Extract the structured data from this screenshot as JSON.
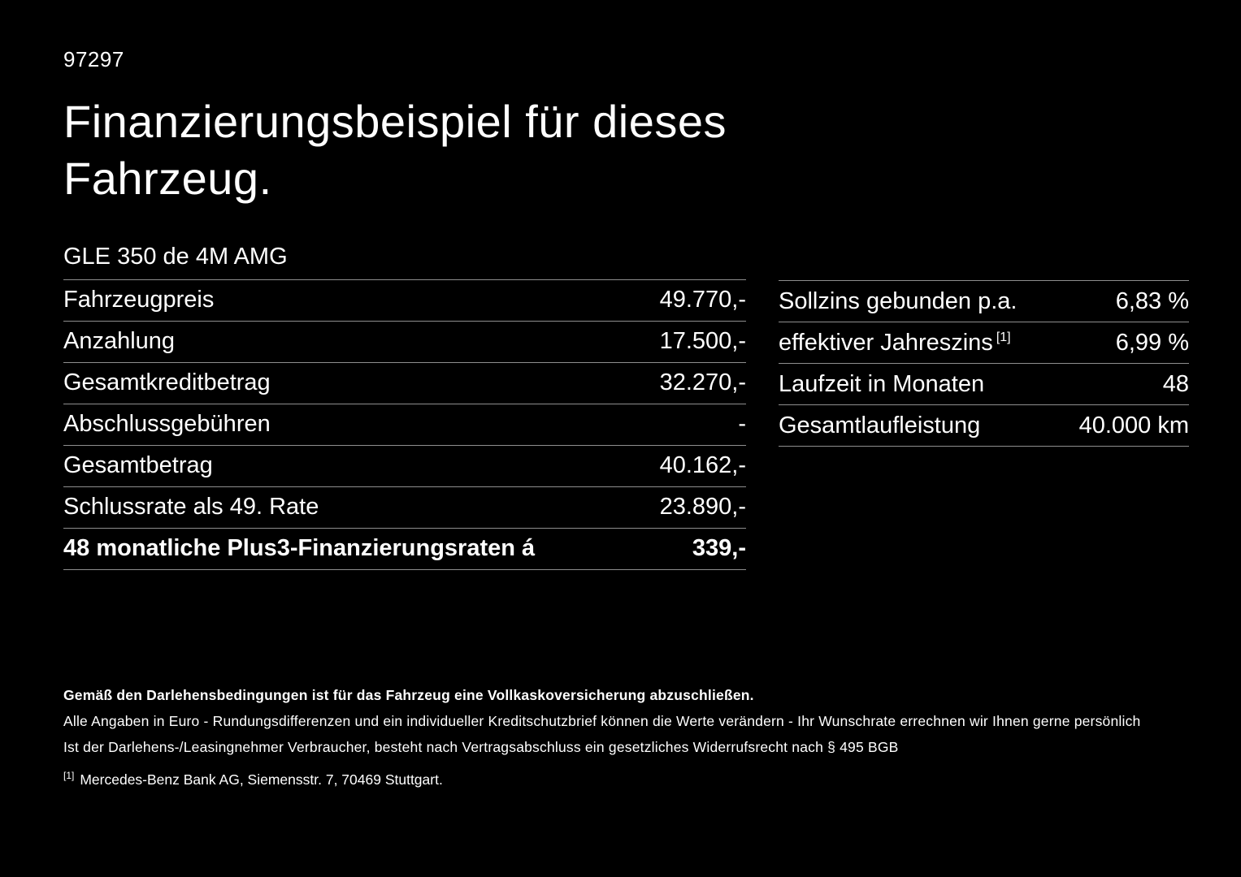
{
  "page": {
    "doc_number": "97297",
    "title": "Finanzierungsbeispiel für dieses Fahrzeug.",
    "vehicle": "GLE 350 de 4M AMG"
  },
  "left_table": {
    "rows": [
      {
        "label": "Fahrzeugpreis",
        "value": "49.770,-"
      },
      {
        "label": "Anzahlung",
        "value": "17.500,-"
      },
      {
        "label": "Gesamtkreditbetrag",
        "value": "32.270,-"
      },
      {
        "label": "Abschlussgebühren",
        "value": "-"
      },
      {
        "label": "Gesamtbetrag",
        "value": "40.162,-"
      },
      {
        "label": "Schlussrate als 49. Rate",
        "value": "23.890,-"
      },
      {
        "label": "48 monatliche Plus3-Finanzierungsraten á",
        "value": "339,-"
      }
    ]
  },
  "right_table": {
    "rows": [
      {
        "label": "Sollzins gebunden p.a.",
        "value": "6,83 %"
      },
      {
        "label": "effektiver Jahreszins",
        "sup": "[1]",
        "value": "6,99 %"
      },
      {
        "label": "Laufzeit in Monaten",
        "value": "48"
      },
      {
        "label": "Gesamtlaufleistung",
        "value": "40.000 km"
      }
    ]
  },
  "footer": {
    "insurance_note": "Gemäß den Darlehensbedingungen ist für das Fahrzeug eine Vollkaskoversicherung abzuschließen.",
    "euro_note": "Alle Angaben in Euro - Rundungsdifferenzen und ein individueller Kreditschutzbrief können die Werte verändern - Ihr Wunschrate errechnen wir Ihnen gerne persönlich",
    "withdrawal_note": "Ist der Darlehens-/Leasingnehmer Verbraucher, besteht nach Vertragsabschluss ein gesetzliches Widerrufsrecht nach § 495 BGB",
    "footnote_marker": "[1]",
    "footnote_text": "Mercedes-Benz Bank AG, Siemensstr. 7, 70469 Stuttgart."
  },
  "colors": {
    "background": "#000000",
    "text": "#ffffff",
    "divider": "#8e8e8e"
  }
}
